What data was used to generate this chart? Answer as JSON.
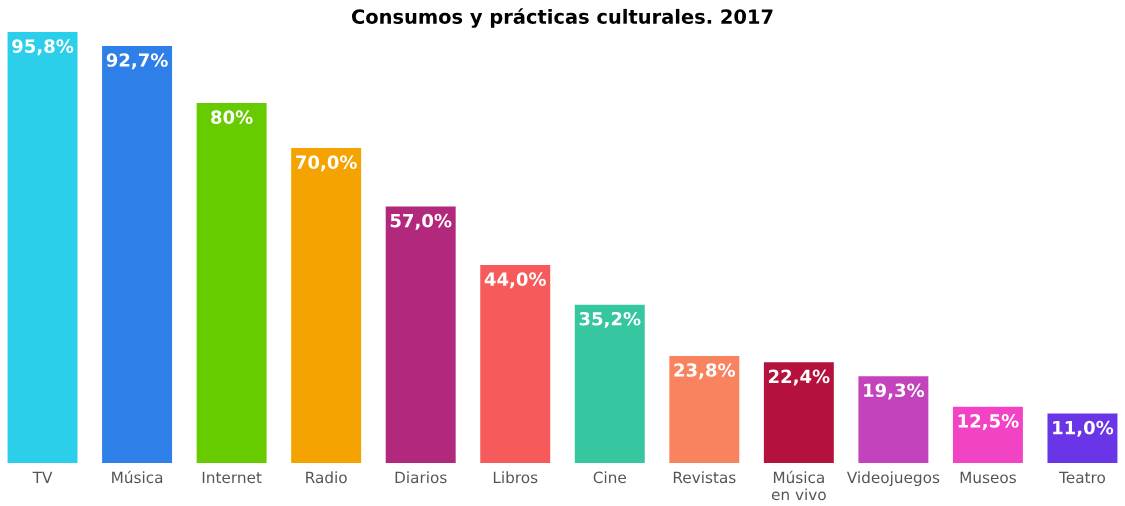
{
  "chart_data": {
    "type": "bar",
    "title": "Consumos y prácticas culturales. 2017",
    "categories": [
      "TV",
      "Música",
      "Internet",
      "Radio",
      "Diarios",
      "Libros",
      "Cine",
      "Revistas",
      "Música\nen vivo",
      "Videojuegos",
      "Museos",
      "Teatro"
    ],
    "values": [
      95.8,
      92.7,
      80,
      70.0,
      57.0,
      44.0,
      35.2,
      23.8,
      22.4,
      19.3,
      12.5,
      11.0
    ],
    "value_labels": [
      "95,8%",
      "92,7%",
      "80%",
      "70,0%",
      "57,0%",
      "44,0%",
      "35,2%",
      "23,8%",
      "22,4%",
      "19,3%",
      "12,5%",
      "11,0%"
    ],
    "colors": [
      "#2ccfea",
      "#2f7fe8",
      "#66cc00",
      "#f4a300",
      "#b2287c",
      "#f75a5a",
      "#36c6a0",
      "#f9825f",
      "#b4123c",
      "#c343bc",
      "#f243c4",
      "#6a35e6"
    ],
    "grid": false,
    "legend": false
  }
}
